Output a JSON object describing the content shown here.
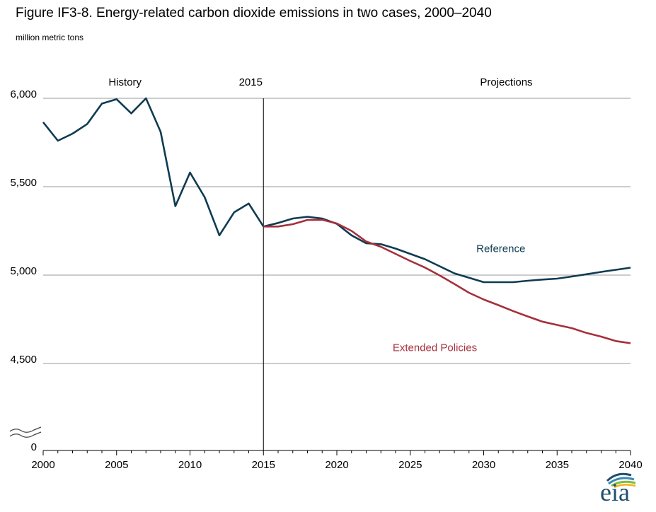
{
  "title": "Figure IF3-8. Energy-related carbon dioxide emissions in two cases, 2000–2040",
  "units": "million metric tons",
  "logo_text": "eia",
  "chart_data": {
    "type": "line",
    "ylabel": "million metric tons",
    "xlim": [
      2000,
      2040
    ],
    "ylim": [
      4400,
      6000
    ],
    "y_ticks": [
      {
        "value": 4500,
        "label": "4,500"
      },
      {
        "value": 5000,
        "label": "5,000"
      },
      {
        "value": 5500,
        "label": "5,500"
      },
      {
        "value": 6000,
        "label": "6,000"
      }
    ],
    "y_zero_label": "0",
    "x_ticks": [
      2000,
      2005,
      2010,
      2015,
      2020,
      2025,
      2030,
      2035,
      2040
    ],
    "grid": true,
    "axis_break": true,
    "divider": {
      "x": 2015,
      "label": "2015"
    },
    "region_labels": [
      {
        "text": "History",
        "x": 2000.5
      },
      {
        "text": "Projections",
        "x": 2025.8
      }
    ],
    "series": [
      {
        "name": "Reference",
        "color": "#0f3b52",
        "label_at": {
          "x": 2029.5,
          "y": 5130
        },
        "x": [
          2000,
          2001,
          2002,
          2003,
          2004,
          2005,
          2006,
          2007,
          2008,
          2009,
          2010,
          2011,
          2012,
          2013,
          2014,
          2015,
          2016,
          2017,
          2018,
          2019,
          2020,
          2021,
          2022,
          2023,
          2024,
          2025,
          2026,
          2027,
          2028,
          2029,
          2030,
          2031,
          2032,
          2033,
          2034,
          2035,
          2036,
          2037,
          2038,
          2039,
          2040
        ],
        "values": [
          5865,
          5760,
          5800,
          5855,
          5970,
          5995,
          5915,
          6000,
          5810,
          5390,
          5580,
          5440,
          5225,
          5355,
          5405,
          5275,
          5295,
          5320,
          5330,
          5320,
          5290,
          5225,
          5180,
          5175,
          5150,
          5120,
          5090,
          5050,
          5010,
          4985,
          4960,
          4960,
          4960,
          4968,
          4975,
          4980,
          4992,
          5005,
          5018,
          5030,
          5042
        ]
      },
      {
        "name": "Extended Policies",
        "color": "#a5303b",
        "label_at": {
          "x": 2023.8,
          "y": 4570
        },
        "x": [
          2015,
          2016,
          2017,
          2018,
          2019,
          2020,
          2021,
          2022,
          2023,
          2024,
          2025,
          2026,
          2027,
          2028,
          2029,
          2030,
          2031,
          2032,
          2033,
          2034,
          2035,
          2036,
          2037,
          2038,
          2039,
          2040
        ],
        "values": [
          5275,
          5275,
          5288,
          5312,
          5313,
          5292,
          5250,
          5190,
          5160,
          5120,
          5080,
          5043,
          4998,
          4950,
          4900,
          4862,
          4830,
          4797,
          4766,
          4737,
          4718,
          4700,
          4673,
          4652,
          4627,
          4615
        ]
      }
    ]
  }
}
